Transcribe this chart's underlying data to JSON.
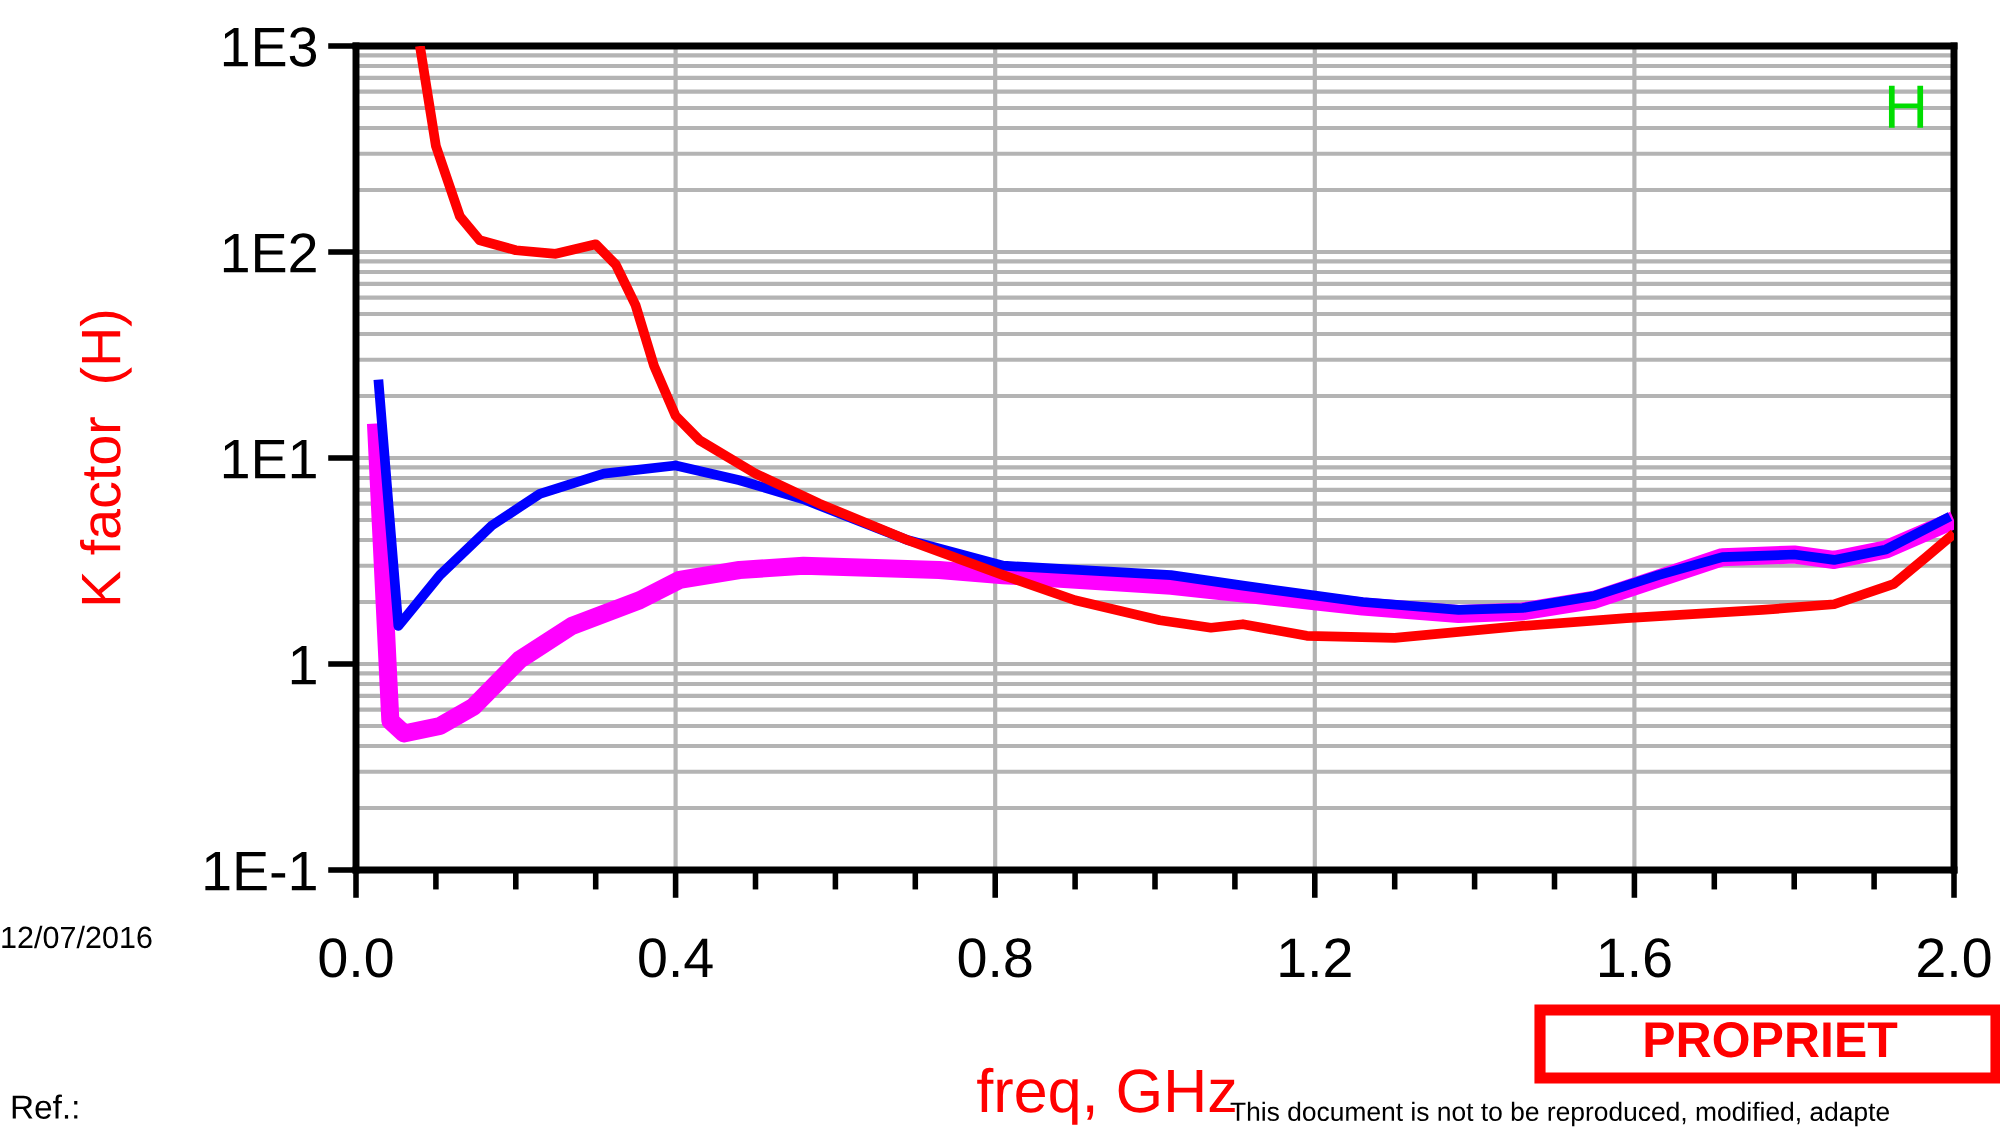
{
  "chart_data": {
    "type": "line",
    "xlabel": "freq, GHz",
    "ylabel": "K factor  (H)",
    "log": "y",
    "grid": true,
    "legend": false,
    "xlim": [
      0,
      2.0
    ],
    "xticks": [
      {
        "value": 0,
        "label": "0.0"
      },
      {
        "value": 0.1,
        "label": null
      },
      {
        "value": 0.2,
        "label": null
      },
      {
        "value": 0.3,
        "label": null
      },
      {
        "value": 0.4,
        "label": "0.4"
      },
      {
        "value": 0.5,
        "label": null
      },
      {
        "value": 0.6,
        "label": null
      },
      {
        "value": 0.7,
        "label": null
      },
      {
        "value": 0.8,
        "label": "0.8"
      },
      {
        "value": 0.9,
        "label": null
      },
      {
        "value": 1.0,
        "label": null
      },
      {
        "value": 1.1,
        "label": null
      },
      {
        "value": 1.2,
        "label": "1.2"
      },
      {
        "value": 1.3,
        "label": null
      },
      {
        "value": 1.4,
        "label": null
      },
      {
        "value": 1.5,
        "label": null
      },
      {
        "value": 1.6,
        "label": "1.6"
      },
      {
        "value": 1.7,
        "label": null
      },
      {
        "value": 1.8,
        "label": null
      },
      {
        "value": 1.9,
        "label": null
      },
      {
        "value": 2.0,
        "label": "2.0"
      }
    ],
    "ylim": [
      0.1,
      1000
    ],
    "yticks": [
      {
        "value": 1000,
        "label": "1E3"
      },
      {
        "value": 100,
        "label": "1E2"
      },
      {
        "value": 10,
        "label": "1E1"
      },
      1,
      {
        "value": 0.1,
        "label": "1E-1"
      }
    ],
    "series": [
      {
        "color": "#ff00ff",
        "x": [
          0.025,
          0.043,
          0.06,
          0.105,
          0.147,
          0.205,
          0.27,
          0.355,
          0.405,
          0.48,
          0.56,
          0.73,
          0.81,
          1.02,
          1.11,
          1.26,
          1.38,
          1.46,
          1.55,
          1.63,
          1.71,
          1.8,
          1.85,
          1.915,
          2.0
        ],
        "values": [
          14.7,
          0.53,
          0.46,
          0.5,
          0.62,
          1.05,
          1.53,
          2.04,
          2.56,
          2.86,
          3.0,
          2.86,
          2.7,
          2.4,
          2.2,
          1.9,
          1.75,
          1.8,
          2.05,
          2.6,
          3.3,
          3.4,
          3.2,
          3.6,
          5.0
        ]
      },
      {
        "color": "#0000ff",
        "x": [
          0.028,
          0.053,
          0.105,
          0.17,
          0.23,
          0.31,
          0.4,
          0.48,
          0.56,
          0.69,
          0.81,
          1.02,
          1.11,
          1.26,
          1.38,
          1.46,
          1.55,
          1.63,
          1.71,
          1.8,
          1.85,
          1.915,
          1.995
        ],
        "values": [
          24,
          1.53,
          2.7,
          4.7,
          6.7,
          8.4,
          9.2,
          7.8,
          6.3,
          4.0,
          3.0,
          2.7,
          2.4,
          2.0,
          1.83,
          1.87,
          2.14,
          2.7,
          3.3,
          3.4,
          3.2,
          3.6,
          5.2
        ]
      },
      {
        "color": "#ff0000",
        "x": [
          0.08,
          0.1,
          0.13,
          0.155,
          0.2,
          0.25,
          0.3,
          0.325,
          0.35,
          0.373,
          0.4,
          0.43,
          0.5,
          0.58,
          0.69,
          0.81,
          0.9,
          1.006,
          1.07,
          1.11,
          1.19,
          1.3,
          1.46,
          1.59,
          1.76,
          1.85,
          1.925,
          1.965,
          2.0
        ],
        "values": [
          1000,
          327,
          149,
          114,
          102,
          98,
          109,
          87,
          55,
          28,
          16,
          12.2,
          8.4,
          6.0,
          4.0,
          2.7,
          2.04,
          1.63,
          1.5,
          1.56,
          1.37,
          1.34,
          1.53,
          1.67,
          1.83,
          1.95,
          2.45,
          3.3,
          4.3
        ]
      }
    ],
    "annotations": [
      "H",
      "12/07/2016",
      "Ref.:",
      "PROPRIET",
      "This document is not to be reproduced, modified, adapte"
    ]
  }
}
